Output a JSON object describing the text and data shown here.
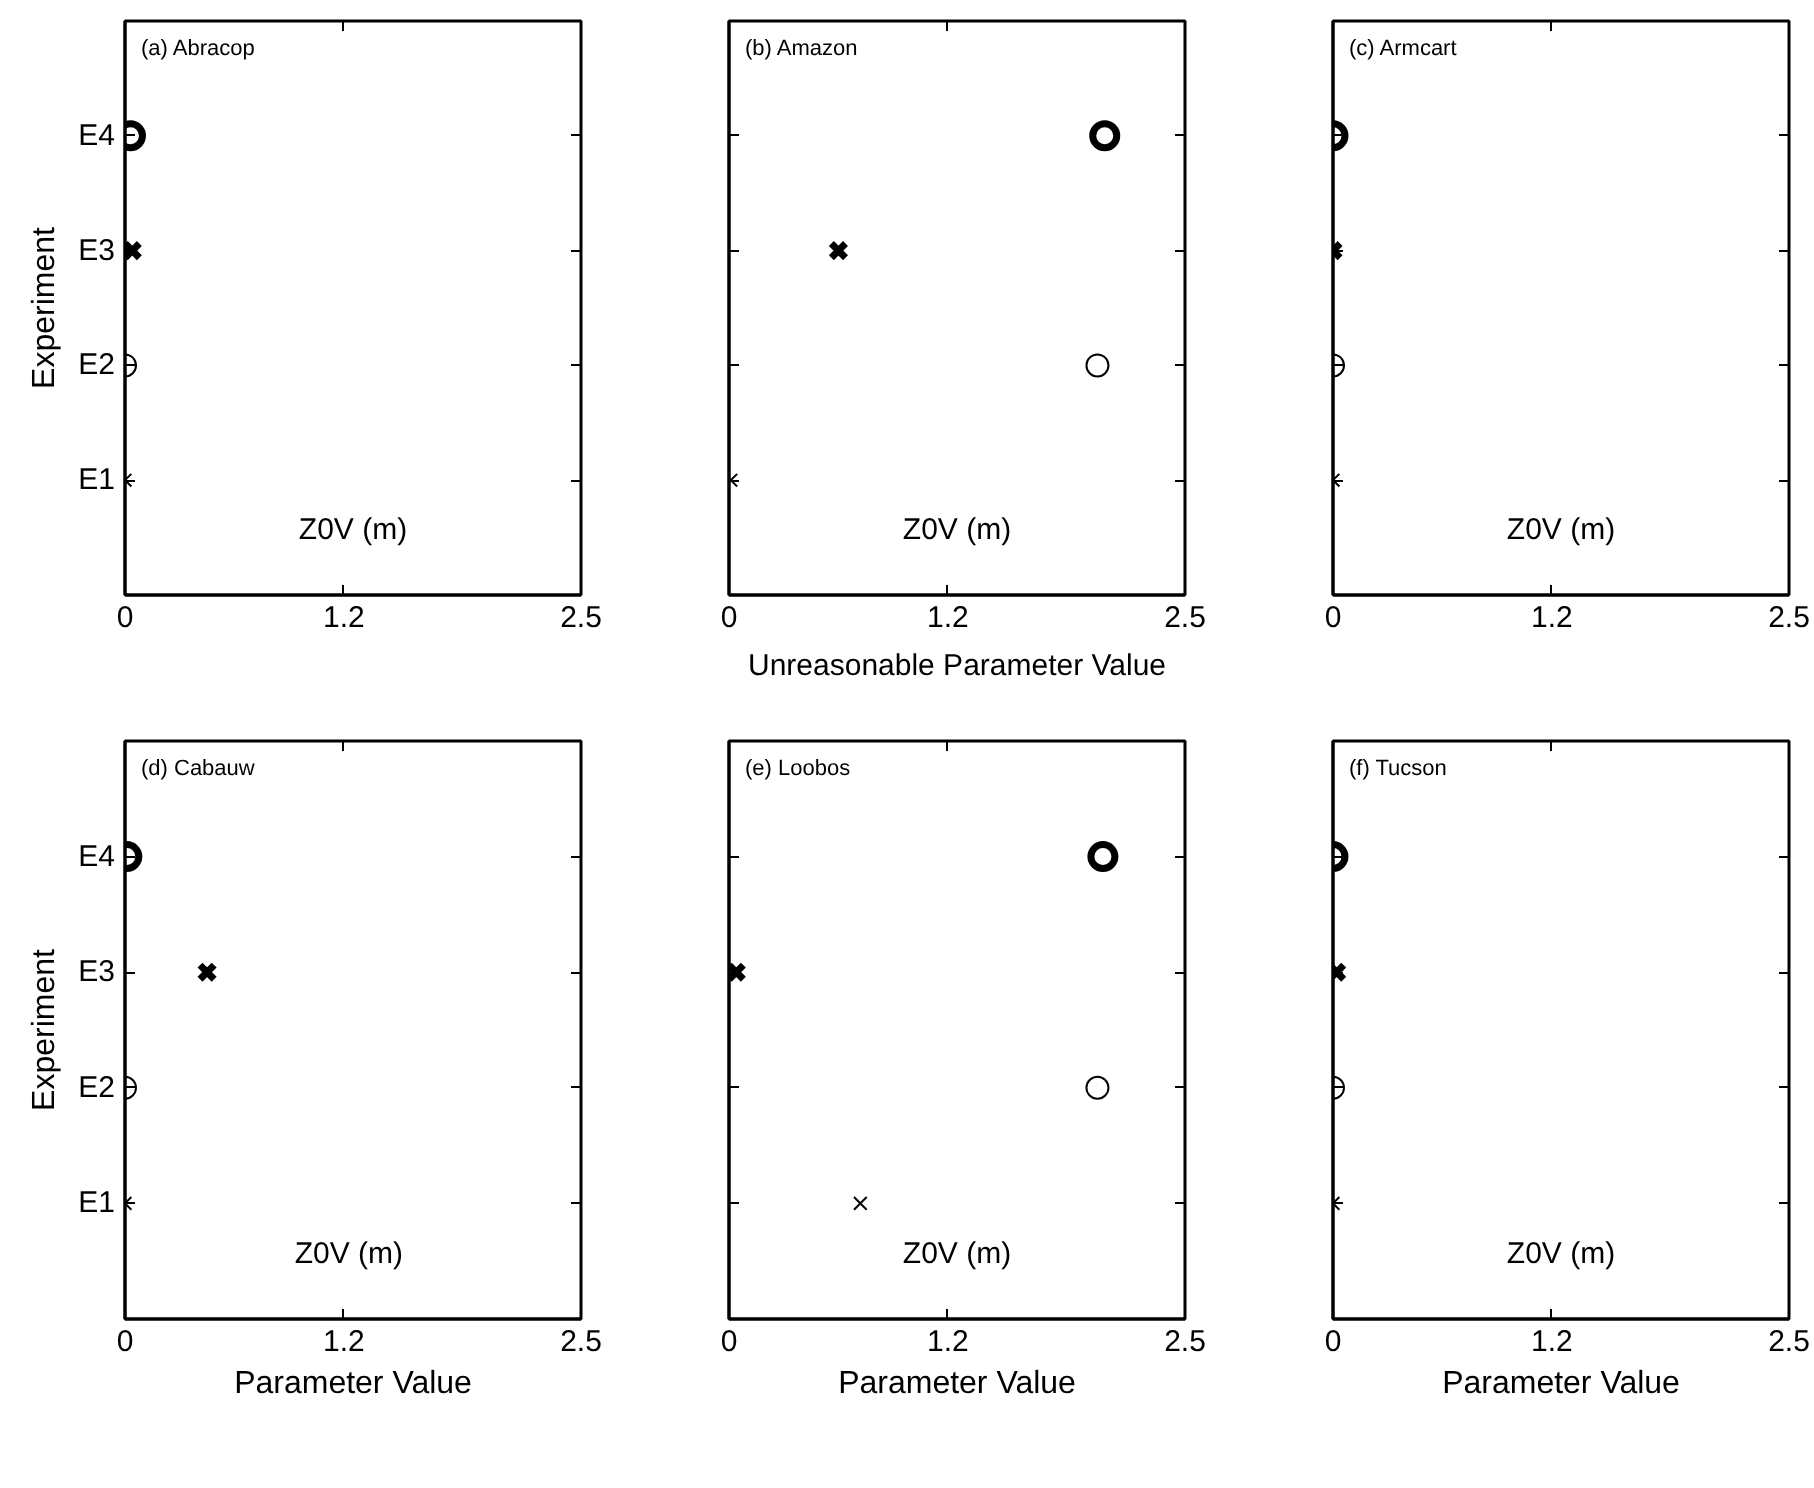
{
  "chart_data": [
    {
      "type": "scatter",
      "orientation": "horizontal",
      "title": "(a) Abracop",
      "ylabel": "Experiment",
      "annotations": [
        "Z0V (m)"
      ],
      "categories": [
        "E4",
        "E3",
        "E2",
        "E1"
      ],
      "xlim": [
        0,
        2.5
      ],
      "xticks": [
        0,
        1.2,
        2.5
      ],
      "grid": false,
      "series": [
        {
          "color": "#000000",
          "marker": "cross",
          "values": [
            null,
            null,
            null,
            0.0
          ]
        },
        {
          "color": "#000000",
          "marker": "circle",
          "values": [
            null,
            null,
            0.0,
            null
          ]
        },
        {
          "color": "#000000",
          "marker": "cross",
          "values": [
            null,
            0.04,
            null,
            null
          ]
        },
        {
          "color": "#000000",
          "marker": "circle",
          "values": [
            0.03,
            null,
            null,
            null
          ]
        }
      ]
    },
    {
      "type": "scatter",
      "orientation": "horizontal",
      "title": "(b) Amazon",
      "annotations": [
        "Z0V (m)",
        "Unreasonable Parameter Value"
      ],
      "categories": [
        null,
        null,
        null,
        null
      ],
      "xlim": [
        0,
        2.5
      ],
      "xticks": [
        0,
        1.2,
        2.5
      ],
      "grid": false,
      "tick_labels": "x",
      "series": [
        {
          "color": "#000000",
          "marker": "cross",
          "values": [
            null,
            null,
            null,
            0.01
          ]
        },
        {
          "color": "#000000",
          "marker": "circle",
          "values": [
            null,
            null,
            2.02,
            null
          ]
        },
        {
          "color": "#000000",
          "marker": "cross",
          "values": [
            null,
            0.6,
            null,
            null
          ]
        },
        {
          "color": "#000000",
          "marker": "circle",
          "values": [
            2.06,
            null,
            null,
            null
          ]
        }
      ]
    },
    {
      "type": "scatter",
      "orientation": "horizontal",
      "title": "(c) Armcart",
      "annotations": [
        "Z0V (m)"
      ],
      "categories": [
        null,
        null,
        null,
        null
      ],
      "xlim": [
        0,
        2.5
      ],
      "xticks": [
        0,
        1.2,
        2.5
      ],
      "grid": false,
      "tick_labels": "x",
      "series": [
        {
          "color": "#000000",
          "marker": "cross",
          "values": [
            null,
            null,
            null,
            0.0
          ]
        },
        {
          "color": "#000000",
          "marker": "circle",
          "values": [
            null,
            null,
            0.0,
            null
          ]
        },
        {
          "color": "#000000",
          "marker": "cross",
          "values": [
            null,
            0.0,
            null,
            null
          ]
        },
        {
          "color": "#000000",
          "marker": "circle",
          "values": [
            0.0,
            null,
            null,
            null
          ]
        }
      ]
    },
    {
      "type": "scatter",
      "orientation": "horizontal",
      "title": "(d) Cabauw",
      "xlabel": "Parameter Value",
      "ylabel": "Experiment",
      "annotations": [
        "Z0V  (m)"
      ],
      "categories": [
        "E4",
        "E3",
        "E2",
        "E1"
      ],
      "xlim": [
        0,
        2.5
      ],
      "xticks": [
        0,
        1.2,
        2.5
      ],
      "grid": false,
      "series": [
        {
          "color": "#000000",
          "marker": "cross",
          "values": [
            null,
            null,
            null,
            0.0
          ]
        },
        {
          "color": "#000000",
          "marker": "circle",
          "values": [
            null,
            null,
            0.0,
            null
          ]
        },
        {
          "color": "#000000",
          "marker": "cross",
          "values": [
            null,
            0.45,
            null,
            null
          ]
        },
        {
          "color": "#000000",
          "marker": "circle",
          "values": [
            0.01,
            null,
            null,
            null
          ]
        }
      ]
    },
    {
      "type": "scatter",
      "orientation": "horizontal",
      "title": "(e) Loobos",
      "xlabel": "Parameter Value",
      "annotations": [
        "Z0V (m)"
      ],
      "categories": [
        null,
        null,
        null,
        null
      ],
      "xlim": [
        0,
        2.5
      ],
      "xticks": [
        0,
        1.2,
        2.5
      ],
      "grid": false,
      "tick_labels": "x",
      "series": [
        {
          "color": "#000000",
          "marker": "cross",
          "values": [
            null,
            null,
            null,
            0.72
          ]
        },
        {
          "color": "#000000",
          "marker": "circle",
          "values": [
            null,
            null,
            2.02,
            null
          ]
        },
        {
          "color": "#000000",
          "marker": "cross",
          "values": [
            null,
            0.04,
            null,
            null
          ]
        },
        {
          "color": "#000000",
          "marker": "circle",
          "values": [
            2.05,
            null,
            null,
            null
          ]
        }
      ]
    },
    {
      "type": "scatter",
      "orientation": "horizontal",
      "title": "(f) Tucson",
      "xlabel": "Parameter Value",
      "annotations": [
        "Z0V (m)"
      ],
      "categories": [
        null,
        null,
        null,
        null
      ],
      "xlim": [
        0,
        2.5
      ],
      "xticks": [
        0,
        1.2,
        2.5
      ],
      "grid": false,
      "tick_labels": "x",
      "series": [
        {
          "color": "#000000",
          "marker": "cross",
          "values": [
            null,
            null,
            null,
            0.0
          ]
        },
        {
          "color": "#000000",
          "marker": "circle",
          "values": [
            null,
            null,
            0.0,
            null
          ]
        },
        {
          "color": "#000000",
          "marker": "cross",
          "values": [
            null,
            0.02,
            null,
            null
          ]
        },
        {
          "color": "#000000",
          "marker": "circle",
          "values": [
            0.0,
            null,
            null,
            null
          ]
        }
      ]
    }
  ]
}
